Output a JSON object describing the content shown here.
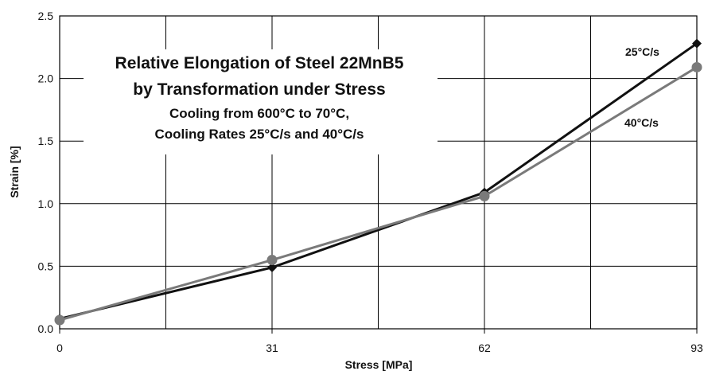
{
  "chart_data": {
    "type": "line",
    "title": "Relative Elongation of Steel 22MnB5",
    "title_line2": "by Transformation under Stress",
    "subtitle_line1": "Cooling from 600°C to 70°C,",
    "subtitle_line2": "Cooling Rates 25°C/s and 40°C/s",
    "xlabel": "Stress [MPa]",
    "ylabel": "Strain [%]",
    "x": [
      0,
      31,
      62,
      93
    ],
    "x_tick_labels": [
      "0",
      "31",
      "62",
      "93"
    ],
    "xlim": [
      0,
      93
    ],
    "ylim": [
      0,
      2.5
    ],
    "y_ticks": [
      0,
      0.5,
      1,
      1.5,
      2,
      2.5
    ],
    "y_tick_labels": [
      "0.0",
      "0.5",
      "1.0",
      "1.5",
      "2.0",
      "2.5"
    ],
    "grid": true,
    "series": [
      {
        "name": "25°C/s",
        "values": [
          0.08,
          0.49,
          1.09,
          2.28
        ],
        "color": "#111111",
        "marker": "diamond"
      },
      {
        "name": "40°C/s",
        "values": [
          0.07,
          0.55,
          1.06,
          2.09
        ],
        "color": "#7a7a7a",
        "marker": "circle"
      }
    ]
  }
}
